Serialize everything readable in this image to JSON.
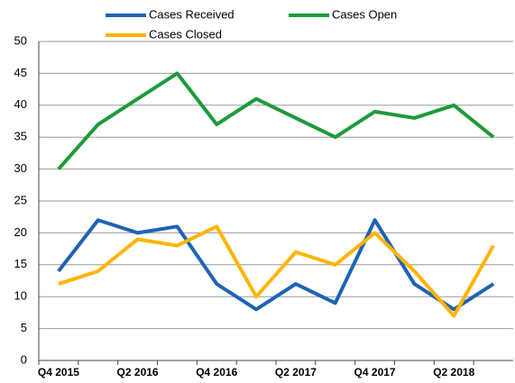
{
  "chart_data": {
    "type": "line",
    "categories": [
      "Q4 2015",
      null,
      "Q2 2016",
      null,
      "Q4 2016",
      null,
      "Q2 2017",
      null,
      "Q4 2017",
      null,
      "Q2 2018",
      null
    ],
    "series": [
      {
        "name": "Cases Received",
        "color": "#1f63b5",
        "values": [
          14,
          22,
          20,
          21,
          12,
          8,
          12,
          9,
          22,
          12,
          8,
          12
        ]
      },
      {
        "name": "Cases Open",
        "color": "#1e9a3a",
        "values": [
          30,
          37,
          41,
          45,
          37,
          41,
          38,
          35,
          39,
          38,
          40,
          35
        ]
      },
      {
        "name": "Cases Closed",
        "color": "#ffb400",
        "values": [
          12,
          14,
          19,
          18,
          21,
          10,
          17,
          15,
          20,
          14,
          7,
          18
        ]
      }
    ],
    "ylim": [
      0,
      50
    ],
    "yticks": [
      0,
      5,
      10,
      15,
      20,
      25,
      30,
      35,
      40,
      45,
      50
    ],
    "grid": true
  }
}
